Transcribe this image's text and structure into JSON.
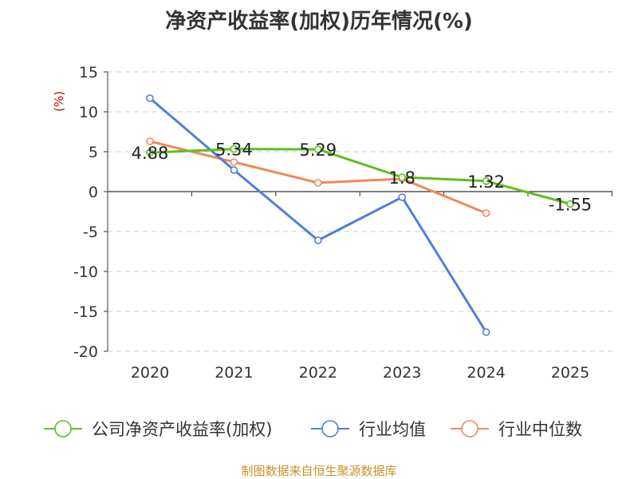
{
  "title": "净资产收益率(加权)历年情况(%)",
  "source": "制图数据来自恒生聚源数据库",
  "colors": {
    "company": "#5fbf1f",
    "industry_avg": "#4f7fdb",
    "industry_median": "#f0895a",
    "grid": "#cccccc",
    "axis": "#333333"
  },
  "chart_data": {
    "type": "line",
    "title": "净资产收益率(加权)历年情况(%)",
    "ylabel": "(%)",
    "xlabel": "",
    "categories": [
      "2020",
      "2021",
      "2022",
      "2023",
      "2024",
      "2025"
    ],
    "ylim": [
      -20,
      15
    ],
    "yticks": [
      15,
      10,
      5,
      0,
      -5,
      -10,
      -15,
      -20
    ],
    "grid": true,
    "legend_position": "bottom",
    "series": [
      {
        "name": "公司净资产收益率(加权)",
        "key": "company",
        "values": [
          4.88,
          5.34,
          5.29,
          1.8,
          1.32,
          -1.55
        ],
        "labels": [
          "4.88",
          "5.34",
          "5.29",
          "1.8",
          "1.32",
          "-1.55"
        ]
      },
      {
        "name": "行业均值",
        "key": "industry_avg",
        "values": [
          11.7,
          2.7,
          -6.1,
          -0.7,
          -17.6,
          null
        ],
        "labels": []
      },
      {
        "name": "行业中位数",
        "key": "industry_median",
        "values": [
          6.3,
          3.7,
          1.1,
          1.6,
          -2.7,
          null
        ],
        "labels": []
      }
    ]
  }
}
